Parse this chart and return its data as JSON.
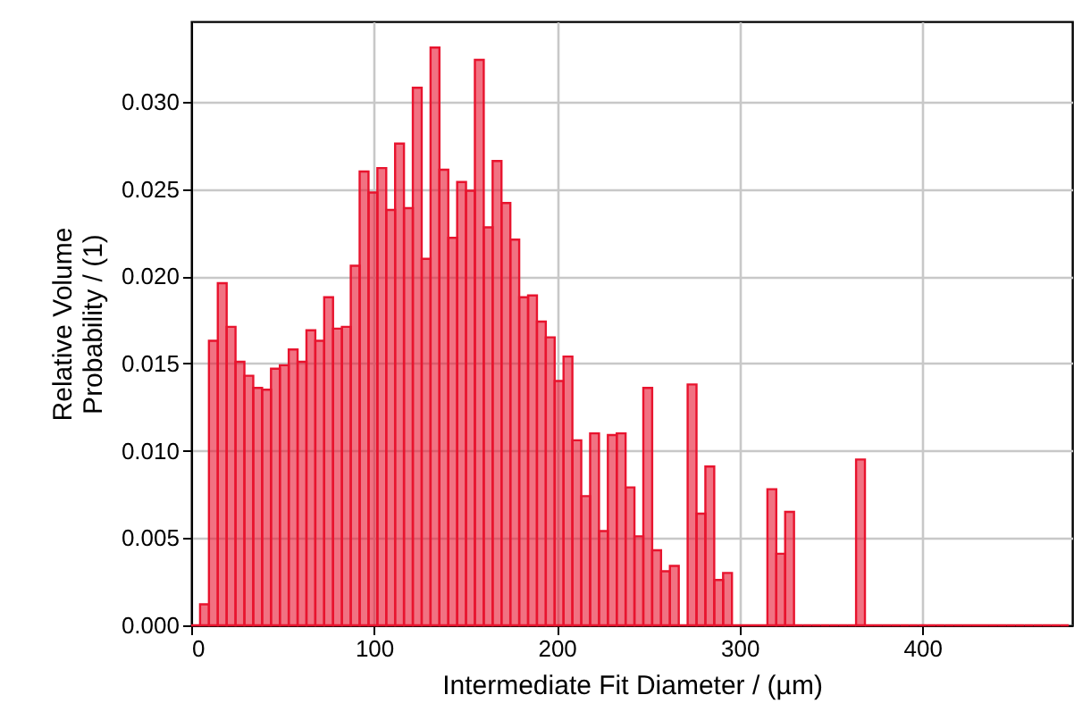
{
  "chart_data": {
    "type": "histogram",
    "xlabel": "Intermediate Fit Diameter / (µm)",
    "ylabel": "Relative Volume\nProbability / (1)",
    "bins": [
      0,
      4.85,
      9.7,
      14.55,
      19.4,
      24.25,
      29.1,
      33.95,
      38.8,
      43.65,
      48.5,
      53.35,
      58.2,
      63.05,
      67.9,
      72.75,
      77.6,
      82.45,
      87.3,
      92.15,
      97,
      101.85,
      106.7,
      111.55,
      116.4,
      121.25,
      126.1,
      130.95,
      135.8,
      140.65,
      145.5,
      150.35,
      155.2,
      160.05,
      164.9,
      169.75,
      174.6,
      179.45,
      184.3,
      189.15,
      194,
      198.85,
      203.7,
      208.55,
      213.4,
      218.25,
      223.1,
      227.95,
      232.8,
      237.65,
      242.5,
      247.35,
      252.2,
      257.05,
      261.9,
      266.75,
      271.6,
      276.45,
      281.3,
      286.15,
      291,
      295.85,
      300.7,
      305.55,
      310.4,
      315.25,
      320.1,
      324.95,
      329.8,
      334.65,
      339.5,
      344.35,
      349.2,
      354.05,
      358.9,
      363.75,
      368.6,
      373.45,
      378.3,
      383.15,
      388,
      392.85,
      397.7,
      402.55,
      407.4,
      412.25,
      417.1,
      421.95,
      426.8,
      431.65,
      436.5,
      441.35,
      446.2,
      451.05,
      455.9,
      460.75,
      465.6,
      470.45,
      475.3,
      480.15
    ],
    "values": [
      0,
      0.0012,
      0.0163,
      0.0196,
      0.0171,
      0.0151,
      0.0143,
      0.0136,
      0.0135,
      0.0147,
      0.0149,
      0.0158,
      0.0151,
      0.0169,
      0.0163,
      0.0188,
      0.017,
      0.0171,
      0.0206,
      0.026,
      0.0248,
      0.0262,
      0.0238,
      0.0276,
      0.0239,
      0.0308,
      0.021,
      0.0331,
      0.0261,
      0.0222,
      0.0254,
      0.0249,
      0.0324,
      0.0228,
      0.0266,
      0.0242,
      0.0221,
      0.0188,
      0.0189,
      0.0174,
      0.0165,
      0.014,
      0.0154,
      0.0106,
      0.0074,
      0.011,
      0.0054,
      0.0109,
      0.011,
      0.0079,
      0.0051,
      0.0136,
      0.0043,
      0.0031,
      0.0034,
      0,
      0.0138,
      0.0064,
      0.0091,
      0.0026,
      0.003,
      0,
      0,
      0,
      0,
      0.0078,
      0.0041,
      0.0065,
      0,
      0,
      0,
      0,
      0,
      0,
      0,
      0.0095,
      0,
      0,
      0,
      0,
      0,
      0,
      0,
      0,
      0,
      0,
      0,
      0,
      0,
      0,
      0,
      0,
      0,
      0,
      0,
      0,
      0,
      0,
      0
    ],
    "color": "#e8142e",
    "xlim": [
      0,
      482
    ],
    "xticks": [
      0,
      100,
      200,
      300,
      400
    ],
    "ylim": [
      0,
      0.0346
    ],
    "yticks": [
      {
        "value": 0,
        "label": "0.000"
      },
      {
        "value": 0.005,
        "label": "0.005"
      },
      {
        "value": 0.01,
        "label": "0.010"
      },
      {
        "value": 0.015,
        "label": "0.015"
      },
      {
        "value": 0.02,
        "label": "0.020"
      },
      {
        "value": 0.025,
        "label": "0.025"
      },
      {
        "value": 0.03,
        "label": "0.030"
      }
    ],
    "grid": true
  }
}
